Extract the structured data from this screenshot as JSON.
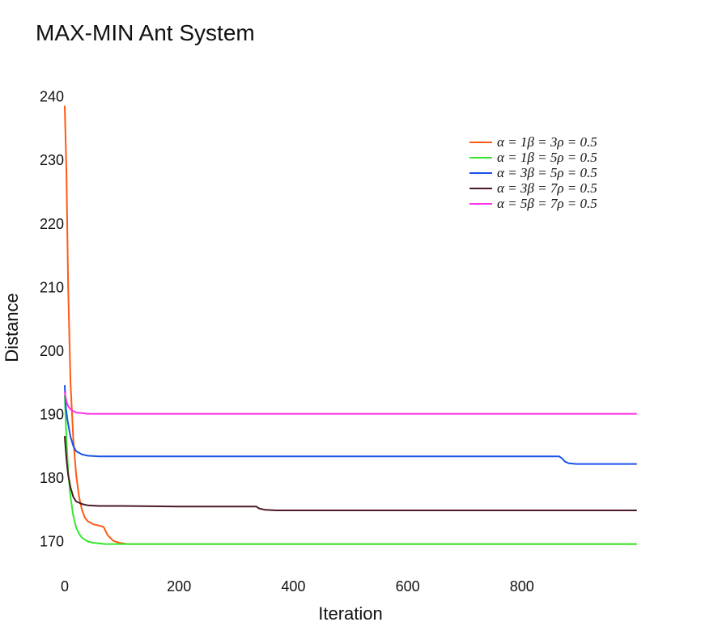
{
  "chart_data": {
    "type": "line",
    "title": "MAX-MIN Ant System",
    "xlabel": "Iteration",
    "ylabel": "Distance",
    "xlim": [
      0,
      1000
    ],
    "ylim": [
      167,
      242
    ],
    "x_ticks": [
      0,
      200,
      400,
      600,
      800
    ],
    "y_ticks": [
      170,
      180,
      190,
      200,
      210,
      220,
      230,
      240
    ],
    "grid": false,
    "legend_position": "top-right",
    "series": [
      {
        "name": "α = 1β = 3ρ = 0.5",
        "color": "#ff5a14",
        "points": [
          [
            0,
            238.5
          ],
          [
            3,
            228
          ],
          [
            6,
            210
          ],
          [
            10,
            195
          ],
          [
            15,
            186
          ],
          [
            20,
            180.5
          ],
          [
            25,
            177
          ],
          [
            30,
            175
          ],
          [
            35,
            173.8
          ],
          [
            40,
            173.2
          ],
          [
            50,
            172.7
          ],
          [
            60,
            172.5
          ],
          [
            68,
            172.3
          ],
          [
            75,
            171
          ],
          [
            85,
            170.1
          ],
          [
            95,
            169.8
          ],
          [
            110,
            169.6
          ],
          [
            150,
            169.6
          ],
          [
            300,
            169.6
          ],
          [
            500,
            169.6
          ],
          [
            700,
            169.6
          ],
          [
            1000,
            169.6
          ]
        ]
      },
      {
        "name": "α = 1β = 5ρ = 0.5",
        "color": "#33e82e",
        "points": [
          [
            0,
            193
          ],
          [
            3,
            186
          ],
          [
            6,
            181
          ],
          [
            10,
            177
          ],
          [
            15,
            174
          ],
          [
            20,
            172.2
          ],
          [
            25,
            171.2
          ],
          [
            30,
            170.6
          ],
          [
            40,
            170
          ],
          [
            50,
            169.8
          ],
          [
            70,
            169.6
          ],
          [
            100,
            169.6
          ],
          [
            300,
            169.6
          ],
          [
            500,
            169.6
          ],
          [
            700,
            169.6
          ],
          [
            1000,
            169.6
          ]
        ]
      },
      {
        "name": "α = 3β = 5ρ = 0.5",
        "color": "#1a52e8",
        "points": [
          [
            0,
            194.5
          ],
          [
            2,
            191
          ],
          [
            5,
            189
          ],
          [
            10,
            186.5
          ],
          [
            15,
            185
          ],
          [
            20,
            184.2
          ],
          [
            30,
            183.7
          ],
          [
            40,
            183.5
          ],
          [
            60,
            183.4
          ],
          [
            100,
            183.4
          ],
          [
            300,
            183.4
          ],
          [
            500,
            183.4
          ],
          [
            700,
            183.4
          ],
          [
            865,
            183.4
          ],
          [
            870,
            183.1
          ],
          [
            875,
            182.6
          ],
          [
            882,
            182.3
          ],
          [
            895,
            182.2
          ],
          [
            910,
            182.2
          ],
          [
            1000,
            182.2
          ]
        ]
      },
      {
        "name": "α = 3β = 7ρ = 0.5",
        "color": "#4b1a24",
        "points": [
          [
            0,
            186.5
          ],
          [
            3,
            183
          ],
          [
            6,
            180.5
          ],
          [
            10,
            178.5
          ],
          [
            15,
            177
          ],
          [
            20,
            176.3
          ],
          [
            30,
            175.9
          ],
          [
            40,
            175.7
          ],
          [
            60,
            175.6
          ],
          [
            100,
            175.6
          ],
          [
            200,
            175.5
          ],
          [
            300,
            175.5
          ],
          [
            335,
            175.5
          ],
          [
            340,
            175.2
          ],
          [
            350,
            175
          ],
          [
            370,
            174.9
          ],
          [
            400,
            174.9
          ],
          [
            600,
            174.9
          ],
          [
            800,
            174.9
          ],
          [
            1000,
            174.9
          ]
        ]
      },
      {
        "name": "α = 5β = 7ρ = 0.5",
        "color": "#ff2ee8",
        "points": [
          [
            0,
            193.5
          ],
          [
            3,
            192
          ],
          [
            6,
            191.3
          ],
          [
            10,
            190.8
          ],
          [
            15,
            190.5
          ],
          [
            20,
            190.3
          ],
          [
            30,
            190.2
          ],
          [
            40,
            190.1
          ],
          [
            60,
            190.1
          ],
          [
            100,
            190.1
          ],
          [
            300,
            190.1
          ],
          [
            500,
            190.1
          ],
          [
            700,
            190.1
          ],
          [
            1000,
            190.1
          ]
        ]
      }
    ]
  }
}
